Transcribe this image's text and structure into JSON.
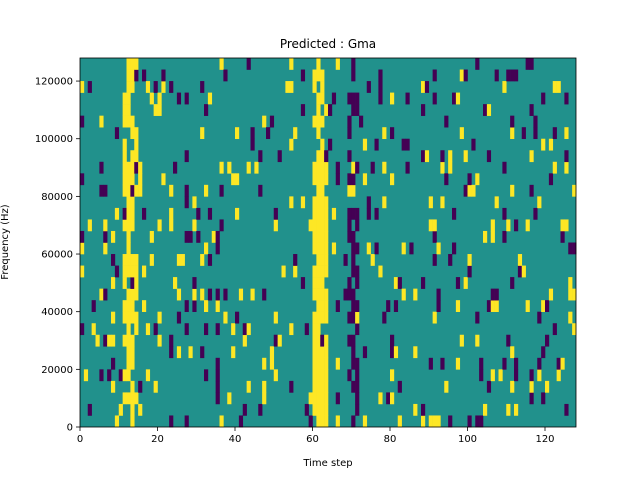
{
  "chart_data": {
    "type": "heatmap",
    "title": "Predicted : Gma",
    "xlabel": "Time step",
    "ylabel": "Frequency (Hz)",
    "xlim": [
      0,
      128
    ],
    "ylim": [
      0,
      128000
    ],
    "x_ticks": [
      "0",
      "20",
      "40",
      "60",
      "80",
      "100",
      "120"
    ],
    "y_ticks": [
      "0",
      "20000",
      "40000",
      "60000",
      "80000",
      "100000",
      "120000"
    ],
    "colormap": {
      "low": "#440154",
      "mid": "#21918c",
      "high": "#fde725"
    },
    "rows": 32,
    "cols": 128,
    "grid": false
  }
}
